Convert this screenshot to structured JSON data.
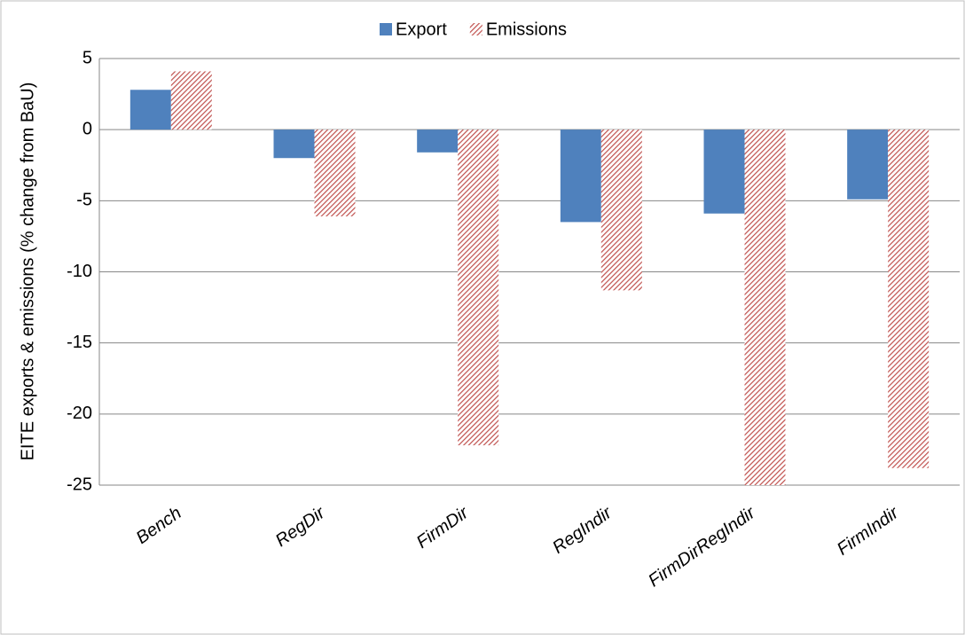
{
  "chart_data": {
    "type": "bar",
    "y_label": "EITE exports & emissions (% change from BaU)",
    "categories": [
      "Bench",
      "RegDir",
      "FirmDir",
      "RegIndir",
      "FirmDirRegIndir",
      "FirmIndir"
    ],
    "series": [
      {
        "name": "Export",
        "color": "#4f81bd",
        "pattern": "solid",
        "values": [
          2.8,
          -2.0,
          -1.6,
          -6.5,
          -5.9,
          -4.9
        ]
      },
      {
        "name": "Emissions",
        "color": "#c0504d",
        "pattern": "hatch",
        "values": [
          4.1,
          -6.1,
          -22.2,
          -11.3,
          -25,
          -23.8
        ]
      }
    ],
    "ylim": [
      -25,
      5
    ],
    "yticks": [
      5,
      0,
      -5,
      -10,
      -15,
      -20,
      -25
    ],
    "grid": true,
    "legend": "top"
  }
}
